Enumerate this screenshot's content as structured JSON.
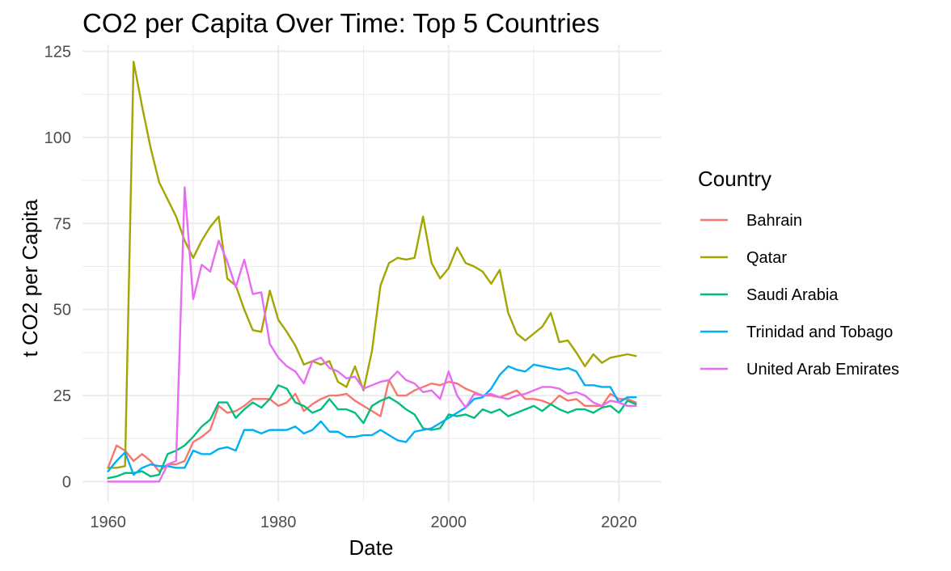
{
  "chart_data": {
    "type": "line",
    "title": "CO2 per Capita Over Time: Top 5 Countries",
    "xlabel": "Date",
    "ylabel": "t CO2 per Capita",
    "xlim": [
      1957,
      2025
    ],
    "ylim": [
      -6,
      127
    ],
    "x_ticks": [
      1960,
      1980,
      2000,
      2020
    ],
    "y_ticks": [
      0,
      25,
      50,
      75,
      100,
      125
    ],
    "grid": true,
    "legend": {
      "title": "Country",
      "position": "right"
    },
    "x": [
      1960,
      1961,
      1962,
      1963,
      1964,
      1965,
      1966,
      1967,
      1968,
      1969,
      1970,
      1971,
      1972,
      1973,
      1974,
      1975,
      1976,
      1977,
      1978,
      1979,
      1980,
      1981,
      1982,
      1983,
      1984,
      1985,
      1986,
      1987,
      1988,
      1989,
      1990,
      1991,
      1992,
      1993,
      1994,
      1995,
      1996,
      1997,
      1998,
      1999,
      2000,
      2001,
      2002,
      2003,
      2004,
      2005,
      2006,
      2007,
      2008,
      2009,
      2010,
      2011,
      2012,
      2013,
      2014,
      2015,
      2016,
      2017,
      2018,
      2019,
      2020,
      2021,
      2022
    ],
    "series": [
      {
        "name": "Bahrain",
        "color": "#F8766D",
        "values": [
          4,
          10.5,
          9,
          6,
          8,
          6,
          3,
          5,
          5,
          6,
          11.5,
          13,
          15,
          22,
          20,
          20.5,
          22,
          24,
          24,
          24,
          22,
          23,
          25.5,
          20.5,
          22.5,
          24,
          25,
          25,
          25.5,
          23.5,
          22,
          20.5,
          19,
          29.5,
          25,
          25,
          26.5,
          27.5,
          28.5,
          28,
          29,
          28.5,
          27,
          26,
          25,
          25,
          24.5,
          25.5,
          26.5,
          24,
          24,
          23.5,
          22.5,
          25,
          23.5,
          24,
          22,
          22,
          22,
          25.5,
          24,
          24,
          23
        ]
      },
      {
        "name": "Qatar",
        "color": "#A3A500",
        "values": [
          4,
          4,
          4.5,
          122,
          109,
          97,
          87,
          82,
          77,
          70,
          65,
          70,
          74,
          77,
          59,
          57,
          50,
          44,
          43.5,
          55.5,
          47,
          43.5,
          39.5,
          34,
          35,
          34,
          35,
          29,
          27.5,
          33.5,
          26.5,
          38,
          57,
          63.5,
          65,
          64.5,
          65,
          77,
          63.5,
          59,
          62,
          68,
          63.5,
          62.5,
          61,
          57.5,
          61.5,
          49,
          43,
          41,
          43,
          45,
          49,
          40.5,
          41,
          37.5,
          33.5,
          37,
          34.5,
          36,
          36.5,
          37,
          36.5
        ]
      },
      {
        "name": "Saudi Arabia",
        "color": "#00BF7D",
        "values": [
          1,
          1.5,
          2.5,
          2.5,
          3,
          1.5,
          2,
          8,
          9,
          10.5,
          13,
          16,
          18,
          23,
          23,
          18.5,
          21,
          23,
          21.5,
          24,
          28,
          27,
          23,
          22,
          20,
          21,
          24,
          21,
          21,
          20,
          17,
          22,
          23.5,
          24.5,
          23,
          21,
          19.5,
          15.5,
          15,
          15.5,
          19.5,
          19,
          19.5,
          18.5,
          21,
          20,
          21,
          19,
          20,
          21,
          22,
          20.5,
          22.5,
          21,
          20,
          21,
          21,
          20,
          21.5,
          22,
          20,
          23.5,
          22.5
        ]
      },
      {
        "name": "Trinidad and Tobago",
        "color": "#00B0F6",
        "values": [
          3,
          6,
          8.5,
          2,
          4,
          5,
          4.5,
          4.5,
          4,
          4,
          9,
          8,
          8,
          9.5,
          10,
          9,
          15,
          15,
          14,
          15,
          15,
          15,
          16,
          14,
          15,
          17.5,
          14.5,
          14.5,
          13,
          13,
          13.5,
          13.5,
          15,
          13.5,
          12,
          11.5,
          14.5,
          15,
          15.5,
          17,
          18.5,
          20,
          21.5,
          24,
          24.5,
          27,
          31,
          33.5,
          32.5,
          32,
          34,
          33.5,
          33,
          32.5,
          33,
          32,
          28,
          28,
          27.5,
          27.5,
          23,
          24.5,
          24.5
        ]
      },
      {
        "name": "United Arab Emirates",
        "color": "#E76BF3",
        "values": [
          0,
          0,
          0,
          0,
          0,
          0,
          0,
          5,
          6,
          85.5,
          53,
          63,
          61,
          70,
          64,
          56.5,
          64.5,
          54.5,
          55,
          40,
          36,
          33.5,
          32,
          28.5,
          35,
          36,
          33,
          32,
          30,
          30.5,
          27,
          28,
          29,
          29.5,
          32,
          29.5,
          28.5,
          26,
          26.5,
          24,
          32,
          25,
          21.5,
          25.5,
          25,
          25.5,
          24.5,
          24,
          25,
          25.5,
          26.5,
          27.5,
          27.5,
          27,
          25.5,
          26,
          25,
          23,
          22,
          23.5,
          23,
          22,
          22
        ]
      }
    ]
  }
}
